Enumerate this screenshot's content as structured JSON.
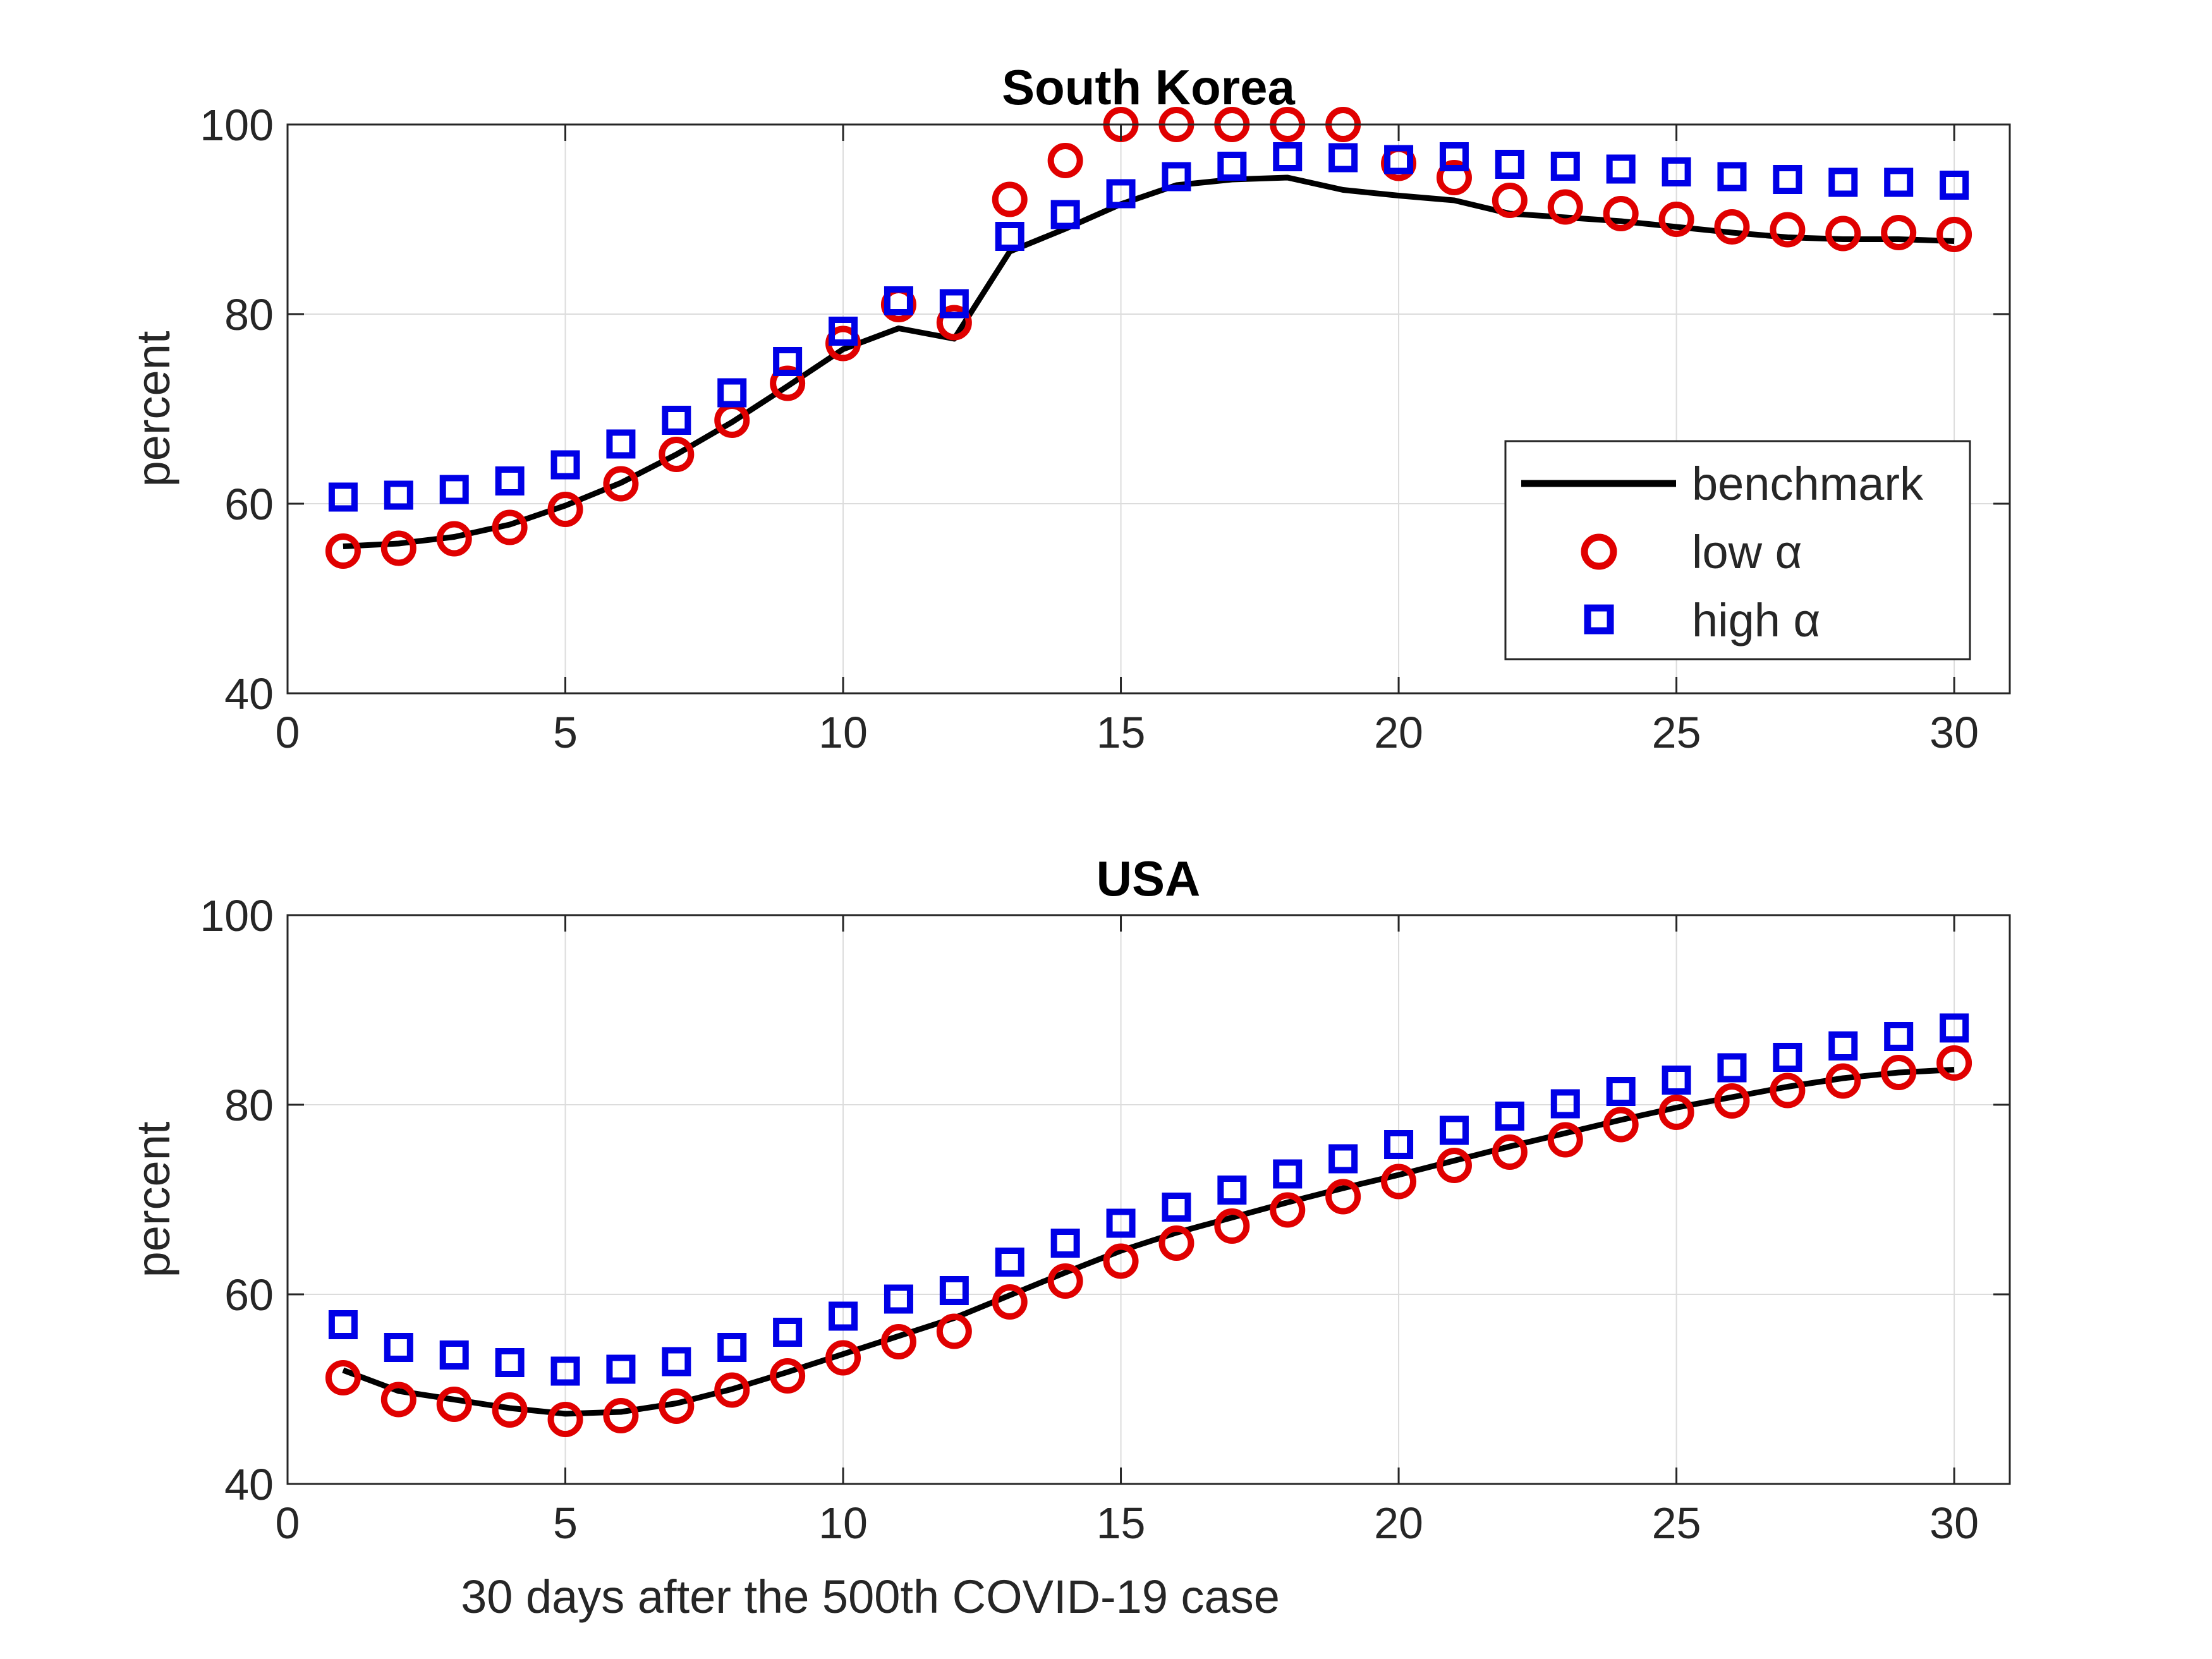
{
  "figure": {
    "xlabel": "30 days after the 500th COVID-19 case",
    "legend": {
      "placement": "inside-right (top panel)",
      "entries": [
        {
          "label": "benchmark",
          "marker": "line",
          "color": "#000000"
        },
        {
          "label": "low α",
          "marker": "circle",
          "color": "#e00000"
        },
        {
          "label": "high α",
          "marker": "square",
          "color": "#0000e6"
        }
      ]
    },
    "colors": {
      "benchmark": "#000000",
      "low": "#e00000",
      "high": "#0000e6",
      "grid": "#dcdcdc",
      "axis": "#262626"
    }
  },
  "chart_data": [
    {
      "type": "line",
      "title": "South Korea",
      "xlabel": "",
      "ylabel": "percent",
      "xlim": [
        0,
        31
      ],
      "ylim": [
        40,
        100
      ],
      "xticks": [
        0,
        5,
        10,
        15,
        20,
        25,
        30
      ],
      "yticks": [
        40,
        60,
        80,
        100
      ],
      "grid": true,
      "x": [
        1,
        2,
        3,
        4,
        5,
        6,
        7,
        8,
        9,
        10,
        11,
        12,
        13,
        14,
        15,
        16,
        17,
        18,
        19,
        20,
        21,
        22,
        23,
        24,
        25,
        26,
        27,
        28,
        29,
        30
      ],
      "series": [
        {
          "name": "benchmark",
          "style": "line",
          "values": [
            55.5,
            55.8,
            56.5,
            57.8,
            59.8,
            62.2,
            65.2,
            68.6,
            72.4,
            76.3,
            78.5,
            77.4,
            86.6,
            89.0,
            91.6,
            93.6,
            94.2,
            94.4,
            93.1,
            92.5,
            92.0,
            90.6,
            90.2,
            89.8,
            89.2,
            88.6,
            88.1,
            87.9,
            87.9,
            87.7
          ]
        },
        {
          "name": "low α",
          "style": "circle",
          "values": [
            55.0,
            55.3,
            56.3,
            57.5,
            59.4,
            62.1,
            65.2,
            68.8,
            72.7,
            76.9,
            81.0,
            79.1,
            92.1,
            96.2,
            100,
            100,
            100,
            100,
            100,
            95.9,
            94.4,
            92.0,
            91.3,
            90.6,
            90.0,
            89.2,
            88.9,
            88.5,
            88.6,
            88.4
          ]
        },
        {
          "name": "high α",
          "style": "square",
          "values": [
            60.7,
            60.9,
            61.5,
            62.4,
            64.1,
            66.3,
            68.8,
            71.7,
            75.0,
            78.2,
            81.4,
            81.1,
            88.2,
            90.5,
            92.7,
            94.5,
            95.6,
            96.6,
            96.5,
            96.3,
            96.6,
            95.8,
            95.6,
            95.3,
            95.0,
            94.5,
            94.2,
            93.9,
            93.9,
            93.6
          ]
        }
      ]
    },
    {
      "type": "line",
      "title": "USA",
      "xlabel": "30 days after the 500th COVID-19 case",
      "ylabel": "percent",
      "xlim": [
        0,
        31
      ],
      "ylim": [
        40,
        100
      ],
      "xticks": [
        0,
        5,
        10,
        15,
        20,
        25,
        30
      ],
      "yticks": [
        40,
        60,
        80,
        100
      ],
      "grid": true,
      "x": [
        1,
        2,
        3,
        4,
        5,
        6,
        7,
        8,
        9,
        10,
        11,
        12,
        13,
        14,
        15,
        16,
        17,
        18,
        19,
        20,
        21,
        22,
        23,
        24,
        25,
        26,
        27,
        28,
        29,
        30
      ],
      "series": [
        {
          "name": "benchmark",
          "style": "line",
          "values": [
            52.0,
            49.8,
            48.9,
            48.0,
            47.4,
            47.6,
            48.5,
            50.0,
            51.8,
            53.7,
            55.6,
            57.5,
            59.9,
            62.3,
            64.6,
            66.5,
            68.1,
            69.7,
            71.2,
            72.6,
            74.1,
            75.6,
            77.0,
            78.4,
            79.7,
            80.8,
            81.9,
            82.8,
            83.4,
            83.7
          ]
        },
        {
          "name": "low α",
          "style": "circle",
          "values": [
            51.2,
            48.9,
            48.4,
            47.8,
            46.8,
            47.2,
            48.2,
            49.9,
            51.4,
            53.3,
            55.0,
            56.1,
            59.2,
            61.4,
            63.5,
            65.4,
            67.2,
            68.9,
            70.3,
            71.9,
            73.6,
            75.0,
            76.3,
            77.9,
            79.2,
            80.4,
            81.5,
            82.5,
            83.4,
            84.4
          ]
        },
        {
          "name": "high α",
          "style": "square",
          "values": [
            56.8,
            54.4,
            53.6,
            52.8,
            51.9,
            52.1,
            52.9,
            54.4,
            56.0,
            57.7,
            59.5,
            60.4,
            63.4,
            65.4,
            67.5,
            69.2,
            71.0,
            72.7,
            74.3,
            75.8,
            77.3,
            78.8,
            80.1,
            81.4,
            82.6,
            83.9,
            85.0,
            86.2,
            87.2,
            88.1
          ]
        }
      ]
    }
  ]
}
